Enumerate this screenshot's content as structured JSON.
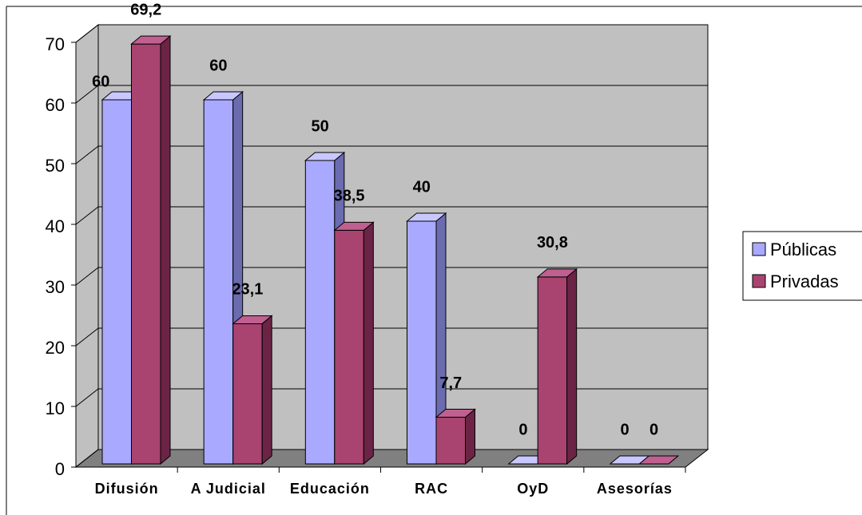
{
  "chart_data": {
    "type": "bar3d",
    "categories": [
      "Difusión",
      "A Judicial",
      "Educación",
      "RAC",
      "OyD",
      "Asesorías"
    ],
    "series": [
      {
        "name": "Públicas",
        "color": "#a9a9ff",
        "values": [
          60,
          60,
          50,
          40,
          0,
          0
        ],
        "value_labels": [
          "60",
          "60",
          "50",
          "40",
          "0",
          "0"
        ]
      },
      {
        "name": "Privadas",
        "color": "#a8446f",
        "values": [
          69.2,
          23.1,
          38.5,
          7.7,
          30.8,
          0
        ],
        "value_labels": [
          "69,2",
          "23,1",
          "38,5",
          "7,7",
          "30,8",
          "0"
        ]
      }
    ],
    "ylim": [
      0,
      70
    ],
    "yticks": [
      0,
      10,
      20,
      30,
      40,
      50,
      60,
      70
    ],
    "grid": true,
    "legend": "right"
  }
}
